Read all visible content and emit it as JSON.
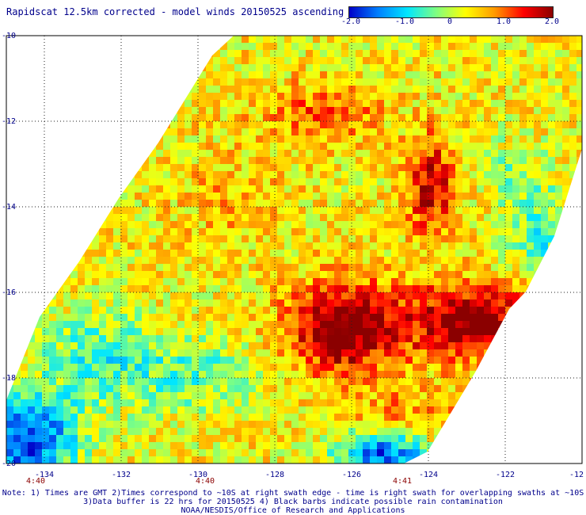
{
  "title": "Rapidscat 12.5km corrected - model winds 20150525 ascending",
  "colorbar": {
    "ticks": [
      "-2.0",
      "-1.0",
      "0",
      "1.0",
      "2.0"
    ],
    "colors": [
      "#0000c8",
      "#0080ff",
      "#00e6ff",
      "#80ff80",
      "#ffff00",
      "#ff9900",
      "#ff0000",
      "#8b0000"
    ]
  },
  "map": {
    "lat_labels": [
      "-10",
      "-12",
      "-14",
      "-16",
      "-18",
      "-20"
    ],
    "lon_labels": [
      "-134",
      "-132",
      "-130",
      "-128",
      "-126",
      "-124",
      "-122",
      "-12"
    ],
    "time_labels": [
      "4:40",
      "4:40",
      "4:41"
    ],
    "grid": "dotted"
  },
  "notes": {
    "line1": "Note: 1) Times are GMT 2)Times correspond to ~10S at right swath edge - time is right swath for overlapping swaths at ~10S",
    "line2": "3)Data buffer is 22 hrs for 20150525 4) Black barbs indicate possible rain contamination",
    "line3": "NOAA/NESDIS/Office of Research and Applications"
  }
}
